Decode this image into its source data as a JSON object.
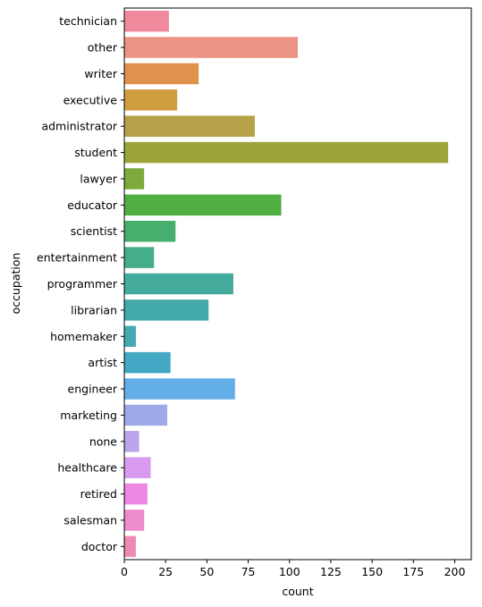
{
  "chart_data": {
    "type": "bar",
    "orientation": "horizontal",
    "xlabel": "count",
    "ylabel": "occupation",
    "xlim": [
      0,
      210
    ],
    "xticks": [
      0,
      25,
      50,
      75,
      100,
      125,
      150,
      175,
      200
    ],
    "grid": false,
    "categories": [
      "technician",
      "other",
      "writer",
      "executive",
      "administrator",
      "student",
      "lawyer",
      "educator",
      "scientist",
      "entertainment",
      "programmer",
      "librarian",
      "homemaker",
      "artist",
      "engineer",
      "marketing",
      "none",
      "healthcare",
      "retired",
      "salesman",
      "doctor"
    ],
    "values": [
      27,
      105,
      45,
      32,
      79,
      196,
      12,
      95,
      31,
      18,
      66,
      51,
      7,
      28,
      67,
      26,
      9,
      16,
      14,
      12,
      7
    ],
    "colors": [
      "#f0899c",
      "#ec9483",
      "#e0924d",
      "#cf9e3f",
      "#b6a048",
      "#9ca53b",
      "#7caa3b",
      "#51ae43",
      "#47af6e",
      "#45ae88",
      "#45ab9d",
      "#44a9a9",
      "#46aab5",
      "#44a8c4",
      "#63aee6",
      "#9eaae7",
      "#bba5ea",
      "#d99bed",
      "#ec88e4",
      "#ec8ccc",
      "#ee8bb4"
    ]
  }
}
